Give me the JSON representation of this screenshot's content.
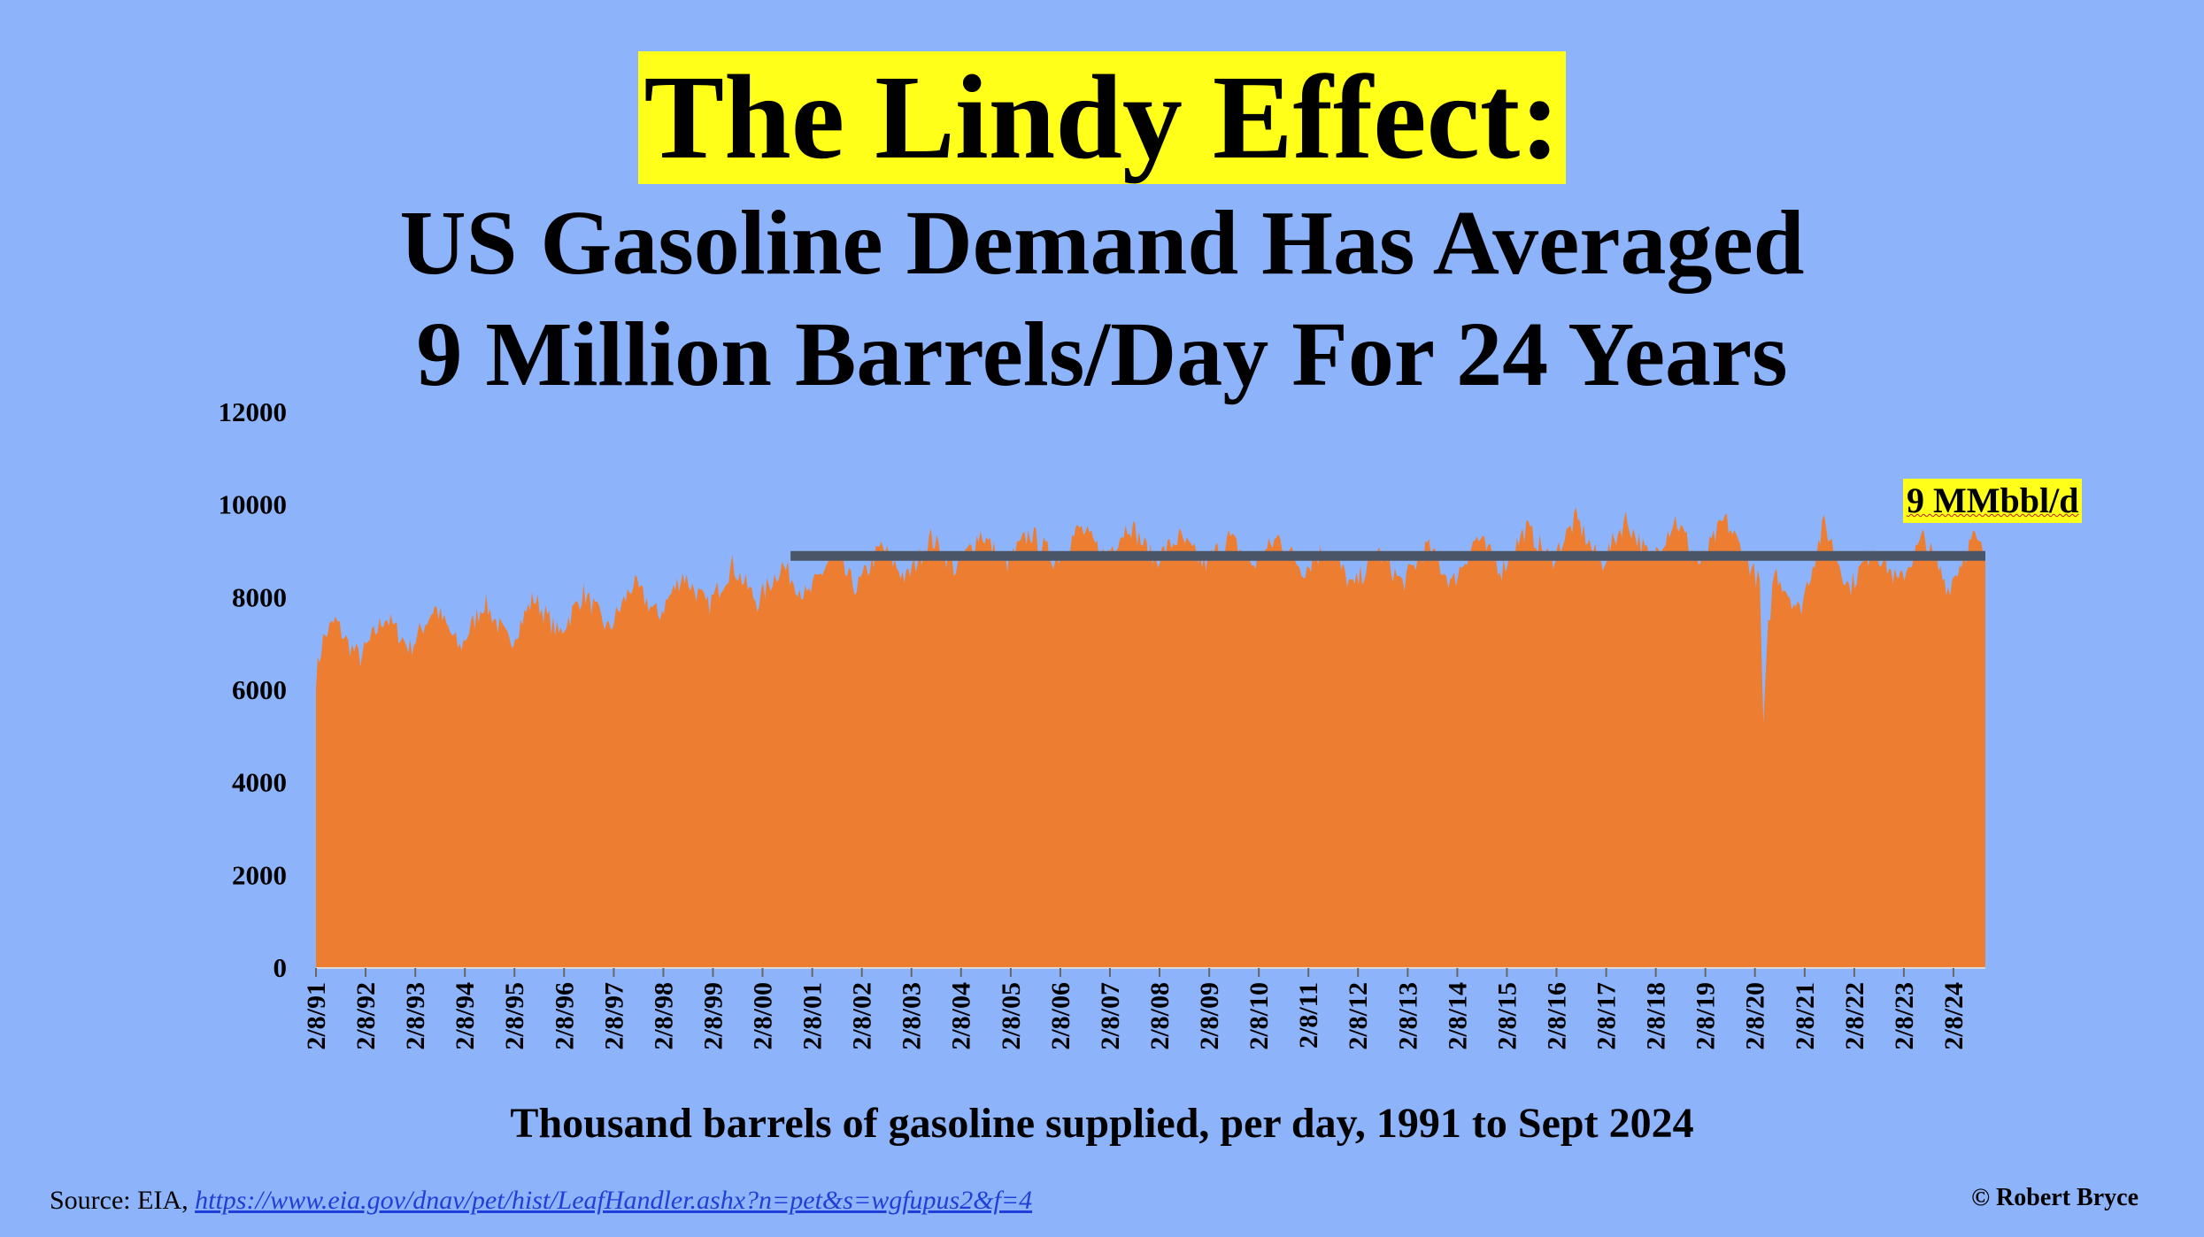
{
  "title": "The Lindy Effect:",
  "subtitle_line1": "US Gasoline Demand Has Averaged",
  "subtitle_line2": "9 Million Barrels/Day For 24 Years",
  "footer": {
    "source_prefix": "Source: EIA, ",
    "source_url": "https://www.eia.gov/dnav/pet/hist/LeafHandler.ashx?n=pet&s=wgfupus2&f=4",
    "copyright": "© Robert Bryce"
  },
  "colors": {
    "background": "#8db4fb",
    "area": "#ed7d31",
    "reference_line": "#4a5568",
    "highlight": "#ffff1a"
  },
  "chart_data": {
    "type": "area",
    "xlabel": "Thousand barrels of gasoline supplied, per day, 1991 to Sept 2024",
    "ylabel": "",
    "ylim": [
      0,
      12000
    ],
    "yticks": [
      0,
      2000,
      4000,
      6000,
      8000,
      10000,
      12000
    ],
    "xticks": [
      "2/8/91",
      "2/8/92",
      "2/8/93",
      "2/8/94",
      "2/8/95",
      "2/8/96",
      "2/8/97",
      "2/8/98",
      "2/8/99",
      "2/8/00",
      "2/8/01",
      "2/8/02",
      "2/8/03",
      "2/8/04",
      "2/8/05",
      "2/8/06",
      "2/8/07",
      "2/8/08",
      "2/8/09",
      "2/8/10",
      "2/8/11",
      "2/8/12",
      "2/8/13",
      "2/8/14",
      "2/8/15",
      "2/8/16",
      "2/8/17",
      "2/8/18",
      "2/8/19",
      "2/8/20",
      "2/8/21",
      "2/8/22",
      "2/8/23",
      "2/8/24"
    ],
    "x_range": [
      "1991-02-08",
      "2024-09-30"
    ],
    "grid": false,
    "series": [
      {
        "values": [
          [
            "1991-02-08",
            6300
          ],
          [
            "1991-04-01",
            7100
          ],
          [
            "1991-07-01",
            7500
          ],
          [
            "1991-10-01",
            7000
          ],
          [
            "1992-01-01",
            6700
          ],
          [
            "1992-07-01",
            7600
          ],
          [
            "1993-01-01",
            6900
          ],
          [
            "1993-07-01",
            7800
          ],
          [
            "1994-01-01",
            6900
          ],
          [
            "1994-07-01",
            7900
          ],
          [
            "1995-01-01",
            7000
          ],
          [
            "1995-07-01",
            8000
          ],
          [
            "1996-01-01",
            7200
          ],
          [
            "1996-07-01",
            8100
          ],
          [
            "1997-01-01",
            7300
          ],
          [
            "1997-07-01",
            8300
          ],
          [
            "1998-01-01",
            7600
          ],
          [
            "1998-07-01",
            8500
          ],
          [
            "1999-01-01",
            7800
          ],
          [
            "1999-07-01",
            8700
          ],
          [
            "2000-01-01",
            7900
          ],
          [
            "2000-07-01",
            8700
          ],
          [
            "2001-01-01",
            8000
          ],
          [
            "2001-07-01",
            8900
          ],
          [
            "2002-01-01",
            8200
          ],
          [
            "2002-07-01",
            9100
          ],
          [
            "2003-01-01",
            8400
          ],
          [
            "2003-07-01",
            9300
          ],
          [
            "2004-01-01",
            8600
          ],
          [
            "2004-07-01",
            9400
          ],
          [
            "2005-01-01",
            8700
          ],
          [
            "2005-07-01",
            9400
          ],
          [
            "2006-01-01",
            8800
          ],
          [
            "2006-07-01",
            9500
          ],
          [
            "2007-01-01",
            8900
          ],
          [
            "2007-07-01",
            9600
          ],
          [
            "2008-01-01",
            8800
          ],
          [
            "2008-07-01",
            9300
          ],
          [
            "2009-01-01",
            8700
          ],
          [
            "2009-07-01",
            9300
          ],
          [
            "2010-01-01",
            8700
          ],
          [
            "2010-07-01",
            9300
          ],
          [
            "2011-01-01",
            8600
          ],
          [
            "2011-07-01",
            9100
          ],
          [
            "2012-01-01",
            8200
          ],
          [
            "2012-07-01",
            9000
          ],
          [
            "2013-01-01",
            8300
          ],
          [
            "2013-07-01",
            9100
          ],
          [
            "2014-01-01",
            8300
          ],
          [
            "2014-07-01",
            9300
          ],
          [
            "2015-01-01",
            8600
          ],
          [
            "2015-07-01",
            9500
          ],
          [
            "2016-01-01",
            8800
          ],
          [
            "2016-07-01",
            9700
          ],
          [
            "2017-01-01",
            8700
          ],
          [
            "2017-07-01",
            9700
          ],
          [
            "2018-01-01",
            8800
          ],
          [
            "2018-07-01",
            9700
          ],
          [
            "2019-01-01",
            8700
          ],
          [
            "2019-07-01",
            9700
          ],
          [
            "2020-01-01",
            8700
          ],
          [
            "2020-03-15",
            8300
          ],
          [
            "2020-04-10",
            5100
          ],
          [
            "2020-05-15",
            7300
          ],
          [
            "2020-07-01",
            8600
          ],
          [
            "2021-01-01",
            7700
          ],
          [
            "2021-07-01",
            9600
          ],
          [
            "2022-01-01",
            8200
          ],
          [
            "2022-07-01",
            9100
          ],
          [
            "2023-01-01",
            8300
          ],
          [
            "2023-07-01",
            9300
          ],
          [
            "2024-01-01",
            8200
          ],
          [
            "2024-07-01",
            9300
          ],
          [
            "2024-09-30",
            8900
          ]
        ]
      }
    ],
    "reference_line": {
      "label": "9 MMbbl/d",
      "value": 8900,
      "x_start": "2000-09-01",
      "x_end": "2024-09-30"
    }
  }
}
